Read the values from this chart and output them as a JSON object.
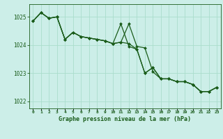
{
  "bg_color": "#cceee8",
  "grid_color": "#aaddcc",
  "line_color": "#1a5c1a",
  "marker_color": "#1a5c1a",
  "xlabel": "Graphe pression niveau de la mer (hPa)",
  "xlabel_color": "#1a5c1a",
  "ylim": [
    1021.75,
    1025.45
  ],
  "xlim": [
    -0.5,
    23.5
  ],
  "yticks": [
    1022,
    1023,
    1024,
    1025
  ],
  "xtick_labels": [
    "0",
    "1",
    "2",
    "3",
    "4",
    "5",
    "6",
    "7",
    "8",
    "9",
    "10",
    "11",
    "12",
    "13",
    "14",
    "15",
    "16",
    "17",
    "18",
    "19",
    "20",
    "21",
    "22",
    "23"
  ],
  "s1": [
    1024.85,
    1025.15,
    1024.95,
    1025.0,
    1024.2,
    1024.45,
    1024.3,
    1024.25,
    1024.2,
    1024.15,
    1024.05,
    1024.1,
    1024.05,
    1023.85,
    1023.0,
    1023.2,
    1022.8,
    1022.8,
    1022.7,
    1022.7,
    1022.6,
    1022.35,
    1022.35,
    1022.5
  ],
  "s2": [
    1024.85,
    1025.15,
    1024.95,
    1025.0,
    1024.2,
    1024.45,
    1024.3,
    1024.25,
    1024.2,
    1024.15,
    1024.05,
    1024.75,
    1023.95,
    1023.85,
    1023.0,
    1023.2,
    1022.8,
    1022.8,
    1022.7,
    1022.7,
    1022.6,
    1022.35,
    1022.35,
    1022.5
  ],
  "s3": [
    1024.85,
    1025.15,
    1024.95,
    1025.0,
    1024.2,
    1024.45,
    1024.3,
    1024.25,
    1024.2,
    1024.15,
    1024.05,
    1024.1,
    1024.75,
    1023.95,
    1023.9,
    1023.05,
    1022.8,
    1022.8,
    1022.7,
    1022.7,
    1022.6,
    1022.35,
    1022.35,
    1022.5
  ],
  "figsize": [
    3.2,
    2.0
  ],
  "dpi": 100
}
